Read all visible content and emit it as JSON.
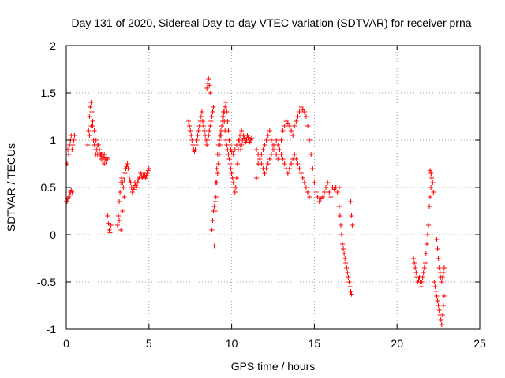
{
  "chart_data": {
    "type": "scatter",
    "title": "Day 131 of 2020, Sidereal Day-to-day VTEC variation (SDTVAR) for receiver prna",
    "xlabel": "GPS time / hours",
    "ylabel": "SDTVAR / TECUs",
    "xlim": [
      0,
      25
    ],
    "ylim": [
      -1,
      2
    ],
    "xticks": [
      0,
      5,
      10,
      15,
      20,
      25
    ],
    "xtick_labels": [
      "0",
      "5",
      "10",
      "15",
      "20",
      "25"
    ],
    "yticks": [
      -1,
      -0.5,
      0,
      0.5,
      1,
      1.5,
      2
    ],
    "ytick_labels": [
      "-1",
      "-0.5",
      "0",
      "0.5",
      "1",
      "1.5",
      "2"
    ],
    "grid": true,
    "marker": "+",
    "color": "#ff0000",
    "series": [
      {
        "name": "SDTVAR",
        "x": [
          0.0,
          0.05,
          0.1,
          0.15,
          0.2,
          0.25,
          0.3,
          0.35,
          0.4,
          0.45,
          0.5,
          0.05,
          0.1,
          0.15,
          0.2,
          0.25,
          0.3,
          0.35,
          1.3,
          1.35,
          1.4,
          1.45,
          1.5,
          1.55,
          1.6,
          1.65,
          1.7,
          1.75,
          1.8,
          1.85,
          1.9,
          1.95,
          2.0,
          2.05,
          2.1,
          2.15,
          2.2,
          2.25,
          2.3,
          2.35,
          2.4,
          2.45,
          2.5,
          1.4,
          1.5,
          1.6,
          1.7,
          1.8,
          1.9,
          2.0,
          2.1,
          2.2,
          2.3,
          2.5,
          2.55,
          2.6,
          2.65,
          2.7,
          3.1,
          3.15,
          3.2,
          3.25,
          3.3,
          3.35,
          3.4,
          3.45,
          3.5,
          3.55,
          3.6,
          3.65,
          3.7,
          3.75,
          3.8,
          3.85,
          3.9,
          3.95,
          4.0,
          4.05,
          4.1,
          4.15,
          4.2,
          4.25,
          4.3,
          4.35,
          4.4,
          4.45,
          4.5,
          4.55,
          4.6,
          4.65,
          4.7,
          4.75,
          4.8,
          4.85,
          4.9,
          4.95,
          5.0,
          3.2,
          3.3,
          3.4,
          3.5,
          7.4,
          7.45,
          7.5,
          7.55,
          7.6,
          7.65,
          7.7,
          7.75,
          7.8,
          7.85,
          7.9,
          7.95,
          8.0,
          8.05,
          8.1,
          8.15,
          8.2,
          8.25,
          8.3,
          8.35,
          8.4,
          8.45,
          8.5,
          8.55,
          8.6,
          8.65,
          8.7,
          8.75,
          8.8,
          8.85,
          8.9,
          8.5,
          8.55,
          8.6,
          8.65,
          8.7,
          8.8,
          8.85,
          8.9,
          8.95,
          9.0,
          9.05,
          9.1,
          9.15,
          9.2,
          9.25,
          9.3,
          9.35,
          9.4,
          9.45,
          9.5,
          9.55,
          9.6,
          9.65,
          9.7,
          9.75,
          9.8,
          9.85,
          9.9,
          9.95,
          10.0,
          10.05,
          10.1,
          10.15,
          10.2,
          10.25,
          10.3,
          10.35,
          10.4,
          10.45,
          10.5,
          10.55,
          10.6,
          10.65,
          10.7,
          10.75,
          10.8,
          10.85,
          10.9,
          10.95,
          11.0,
          11.05,
          11.1,
          11.15,
          11.2,
          8.95,
          9.0,
          9.05,
          9.1,
          9.15,
          9.2,
          9.25,
          9.3,
          9.35,
          9.4,
          9.45,
          9.5,
          9.55,
          9.6,
          9.65,
          9.7,
          9.75,
          9.8,
          9.85,
          9.9,
          9.95,
          10.0,
          10.1,
          10.2,
          10.3,
          10.4,
          10.5,
          10.6,
          11.5,
          11.6,
          11.7,
          11.8,
          11.9,
          12.0,
          12.1,
          12.2,
          12.3,
          12.4,
          12.5,
          12.6,
          12.7,
          12.8,
          12.9,
          13.0,
          13.1,
          13.2,
          13.3,
          13.4,
          13.5,
          13.6,
          13.7,
          13.8,
          13.9,
          14.0,
          14.1,
          14.2,
          14.3,
          14.4,
          14.5,
          14.6,
          14.7,
          14.8,
          14.9,
          15.0,
          15.1,
          15.2,
          15.3,
          15.4,
          15.5,
          15.6,
          15.7,
          15.8,
          15.9,
          16.0,
          16.1,
          16.2,
          16.3,
          16.4,
          16.5,
          11.5,
          11.6,
          11.7,
          11.8,
          11.9,
          12.0,
          12.1,
          12.2,
          12.3,
          12.4,
          12.5,
          12.6,
          12.7,
          12.8,
          12.9,
          13.0,
          13.1,
          13.2,
          13.3,
          13.4,
          13.5,
          13.6,
          13.7,
          13.8,
          13.9,
          14.0,
          14.1,
          14.2,
          14.3,
          14.4,
          14.5,
          14.6,
          14.7,
          16.5,
          16.55,
          16.6,
          16.65,
          16.7,
          16.75,
          16.8,
          16.85,
          16.9,
          16.95,
          17.0,
          17.05,
          17.1,
          17.15,
          17.2,
          17.25,
          17.2,
          17.25,
          17.3,
          21.0,
          21.05,
          21.1,
          21.15,
          21.2,
          21.25,
          21.3,
          21.35,
          21.4,
          21.45,
          21.5,
          21.55,
          21.6,
          21.65,
          21.7,
          21.75,
          21.8,
          21.85,
          21.9,
          21.95,
          22.0,
          22.05,
          22.1,
          22.15,
          22.2,
          22.0,
          22.05,
          22.1,
          22.25,
          22.3,
          22.35,
          22.4,
          22.45,
          22.5,
          22.55,
          22.6,
          22.65,
          22.7,
          22.75,
          22.8,
          22.85,
          22.4,
          22.45,
          22.5,
          22.55,
          22.6,
          22.65,
          22.7,
          22.75,
          22.8,
          22.85
        ],
        "y": [
          0.35,
          0.75,
          0.9,
          0.85,
          0.95,
          1.0,
          1.05,
          0.9,
          0.95,
          1.0,
          1.05,
          0.35,
          0.38,
          0.4,
          0.42,
          0.45,
          0.47,
          0.45,
          0.95,
          1.1,
          1.25,
          1.35,
          1.4,
          1.3,
          1.15,
          1.0,
          0.95,
          0.9,
          0.85,
          0.9,
          0.85,
          0.95,
          0.9,
          0.85,
          0.8,
          0.85,
          0.8,
          0.82,
          0.85,
          0.8,
          0.78,
          0.82,
          0.8,
          1.05,
          1.15,
          1.2,
          1.1,
          1.0,
          0.95,
          0.9,
          0.85,
          0.78,
          0.75,
          0.2,
          0.12,
          0.05,
          0.02,
          0.1,
          0.1,
          0.2,
          0.35,
          0.45,
          0.55,
          0.6,
          0.55,
          0.5,
          0.58,
          0.65,
          0.7,
          0.72,
          0.75,
          0.7,
          0.62,
          0.58,
          0.55,
          0.5,
          0.45,
          0.48,
          0.5,
          0.55,
          0.52,
          0.5,
          0.55,
          0.58,
          0.6,
          0.62,
          0.65,
          0.62,
          0.6,
          0.62,
          0.65,
          0.63,
          0.6,
          0.62,
          0.65,
          0.68,
          0.7,
          0.15,
          0.05,
          0.25,
          0.4,
          1.2,
          1.15,
          1.1,
          1.05,
          1.0,
          0.95,
          0.9,
          0.88,
          0.9,
          0.95,
          1.0,
          1.05,
          1.1,
          1.15,
          1.2,
          1.25,
          1.3,
          1.2,
          1.15,
          1.1,
          1.05,
          1.0,
          0.95,
          1.0,
          1.05,
          1.1,
          1.15,
          1.2,
          1.25,
          1.3,
          1.35,
          1.55,
          1.6,
          1.65,
          1.58,
          1.5,
          0.05,
          0.15,
          0.25,
          0.3,
          0.35,
          0.4,
          0.55,
          0.65,
          0.75,
          0.85,
          0.95,
          1.05,
          1.15,
          1.25,
          1.3,
          1.2,
          1.1,
          1.0,
          0.95,
          0.9,
          0.85,
          0.8,
          0.75,
          0.7,
          0.65,
          0.6,
          0.55,
          0.5,
          0.45,
          0.5,
          0.6,
          0.75,
          0.9,
          1.0,
          0.95,
          0.9,
          0.95,
          1.0,
          1.05,
          1.02,
          1.0,
          0.98,
          1.0,
          1.05,
          1.03,
          1.0,
          0.98,
          1.0,
          1.02,
          -0.12,
          0.25,
          0.55,
          0.7,
          0.85,
          0.95,
          1.0,
          1.05,
          1.1,
          1.15,
          1.2,
          1.25,
          1.3,
          1.35,
          1.4,
          1.3,
          1.2,
          1.1,
          1.0,
          0.95,
          0.9,
          0.88,
          0.85,
          0.9,
          0.95,
          1.0,
          1.05,
          1.1,
          0.6,
          0.75,
          0.8,
          0.85,
          0.9,
          0.95,
          1.0,
          1.05,
          1.1,
          1.0,
          0.95,
          0.9,
          0.85,
          0.8,
          0.9,
          1.0,
          1.1,
          1.15,
          1.2,
          1.18,
          1.15,
          1.1,
          1.05,
          1.15,
          1.2,
          1.25,
          1.3,
          1.35,
          1.32,
          1.3,
          1.25,
          1.15,
          1.0,
          0.85,
          0.7,
          0.55,
          0.45,
          0.4,
          0.35,
          0.38,
          0.4,
          0.45,
          0.5,
          0.55,
          0.45,
          0.4,
          0.5,
          0.48,
          0.5,
          0.45,
          0.5,
          0.9,
          0.85,
          0.8,
          0.75,
          0.7,
          0.65,
          0.7,
          0.75,
          0.8,
          0.85,
          0.9,
          0.95,
          1.0,
          0.95,
          0.9,
          0.85,
          0.8,
          0.75,
          0.7,
          0.65,
          0.7,
          0.75,
          0.8,
          0.85,
          0.8,
          0.75,
          0.7,
          0.65,
          0.6,
          0.55,
          0.5,
          0.45,
          0.4,
          0.3,
          0.2,
          0.1,
          0.0,
          -0.1,
          -0.15,
          -0.2,
          -0.25,
          -0.3,
          -0.35,
          -0.4,
          -0.45,
          -0.5,
          -0.55,
          -0.6,
          -0.63,
          0.35,
          0.2,
          0.1,
          -0.25,
          -0.3,
          -0.35,
          -0.4,
          -0.45,
          -0.5,
          -0.48,
          -0.45,
          -0.5,
          -0.55,
          -0.5,
          -0.45,
          -0.4,
          -0.35,
          -0.3,
          -0.2,
          -0.1,
          0.0,
          0.1,
          0.3,
          0.4,
          0.5,
          0.6,
          0.55,
          0.45,
          0.68,
          0.65,
          0.62,
          -0.5,
          -0.55,
          -0.6,
          -0.65,
          -0.7,
          -0.75,
          -0.8,
          -0.85,
          -0.9,
          -0.95,
          -0.85,
          -0.75,
          -0.65,
          -0.05,
          -0.15,
          -0.25,
          -0.35,
          -0.4,
          -0.45,
          -0.5,
          -0.45,
          -0.4,
          -0.35
        ]
      }
    ]
  }
}
